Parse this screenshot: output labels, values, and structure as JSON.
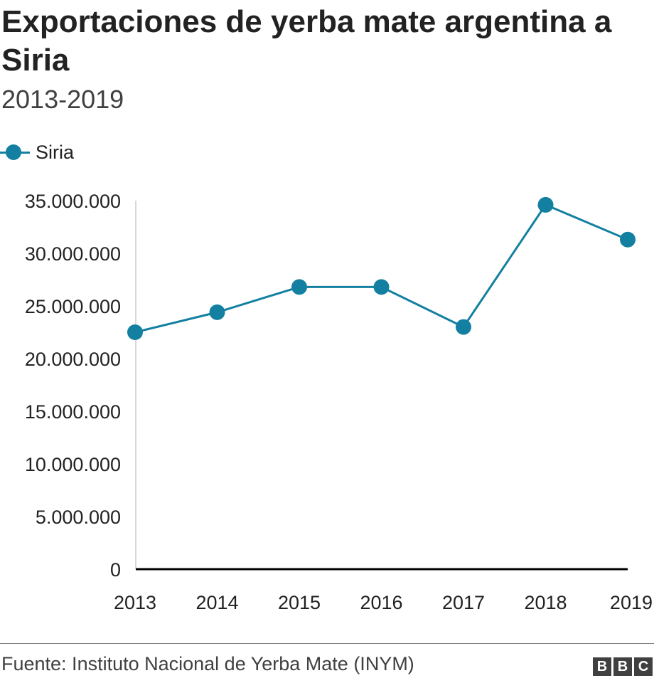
{
  "title": "Exportaciones de yerba mate argentina a Siria",
  "subtitle": "2013-2019",
  "legend": {
    "label": "Siria"
  },
  "source": "Fuente: Instituto Nacional de Yerba Mate (INYM)",
  "logo": {
    "letters": [
      "B",
      "B",
      "C"
    ]
  },
  "colors": {
    "series": "#1380A1",
    "axis": "#000000",
    "gridline": "#cccccc",
    "text": "#222222"
  },
  "chart_data": {
    "type": "line",
    "title": "Exportaciones de yerba mate argentina a Siria",
    "subtitle": "2013-2019",
    "xlabel": "",
    "ylabel": "",
    "categories": [
      "2013",
      "2014",
      "2015",
      "2016",
      "2017",
      "2018",
      "2019"
    ],
    "series": [
      {
        "name": "Siria",
        "values": [
          22500000,
          24400000,
          26800000,
          26800000,
          23000000,
          34600000,
          31300000
        ]
      }
    ],
    "ylim": [
      0,
      35000000
    ],
    "yticks": [
      0,
      5000000,
      10000000,
      15000000,
      20000000,
      25000000,
      30000000,
      35000000
    ],
    "ytick_labels": [
      "0",
      "5.000.000",
      "10.000.000",
      "15.000.000",
      "20.000.000",
      "25.000.000",
      "30.000.000",
      "35.000.000"
    ],
    "grid": false,
    "legend_position": "top-left"
  }
}
